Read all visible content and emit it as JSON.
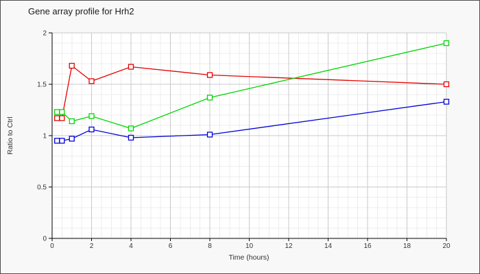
{
  "window": {
    "background": "#f8f8f8",
    "border_color": "#4d4d4d"
  },
  "chart_data": {
    "type": "line",
    "title": "Gene array profile for Hrh2",
    "xlabel": "Time (hours)",
    "ylabel": "Ratio to Ctrl",
    "x": [
      0.25,
      0.5,
      1,
      2,
      4,
      8,
      20
    ],
    "series": [
      {
        "name": "red-series",
        "color": "#e40000",
        "values": [
          1.17,
          1.17,
          1.68,
          1.53,
          1.67,
          1.59,
          1.5
        ]
      },
      {
        "name": "green-series",
        "color": "#00d600",
        "values": [
          1.23,
          1.23,
          1.14,
          1.19,
          1.07,
          1.37,
          1.9
        ]
      },
      {
        "name": "blue-series",
        "color": "#0000d6",
        "values": [
          0.95,
          0.95,
          0.97,
          1.06,
          0.98,
          1.01,
          1.33
        ]
      }
    ],
    "xlim": [
      0,
      20
    ],
    "ylim": [
      0,
      2
    ],
    "x_major_ticks": [
      0,
      2,
      4,
      6,
      8,
      10,
      12,
      14,
      16,
      18,
      20
    ],
    "x_tick_labels": [
      "0",
      "2",
      "4",
      "6",
      "8",
      "10",
      "12",
      "14",
      "16",
      "18",
      "20"
    ],
    "y_major_ticks": [
      0,
      0.5,
      1,
      1.5,
      2
    ],
    "y_tick_labels": [
      "0",
      "0.5",
      "1",
      "1.5",
      "2"
    ],
    "x_minor_step": 0.5,
    "y_minor_step": 0.1,
    "grid": true,
    "legend": "none",
    "marker": "open-square",
    "colors": {
      "plot_background": "#ffffff",
      "grid_minor": "#ececec",
      "grid_major": "#c8c8c8",
      "axis": "#000000",
      "tick_text": "#333333"
    }
  }
}
